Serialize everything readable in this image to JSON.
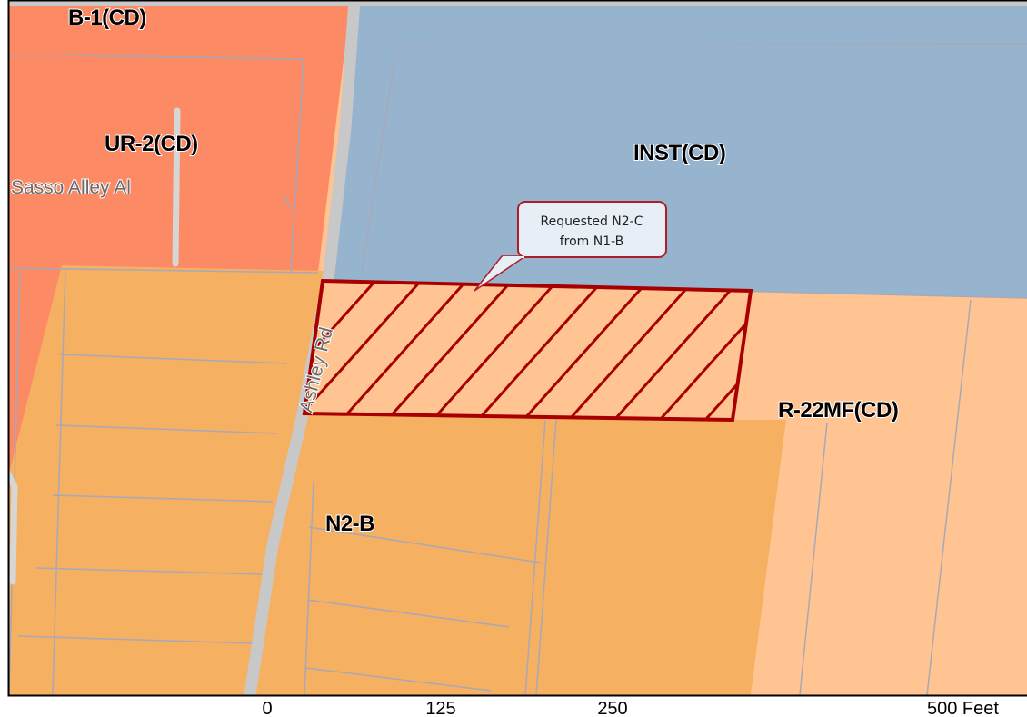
{
  "map": {
    "zones": {
      "b1": "B-1(CD)",
      "ur2": "UR-2(CD)",
      "inst": "INST(CD)",
      "r22": "R-22MF(CD)",
      "n2b": "N2-B"
    },
    "streets": {
      "ashley": "Ashley Rd",
      "sasso": "Sasso Alley Al"
    },
    "callout": {
      "line1": "Requested N2-C",
      "line2": "from N1-B"
    },
    "colors": {
      "ur2": "#fc8a64",
      "inst": "#97b4cf",
      "n2b": "#f5b062",
      "r22": "#ffc492",
      "request_outline": "#a80000",
      "road": "#c8c8c8"
    }
  },
  "scale_bar": {
    "ticks": [
      "0",
      "125",
      "250",
      "500 Feet"
    ]
  }
}
